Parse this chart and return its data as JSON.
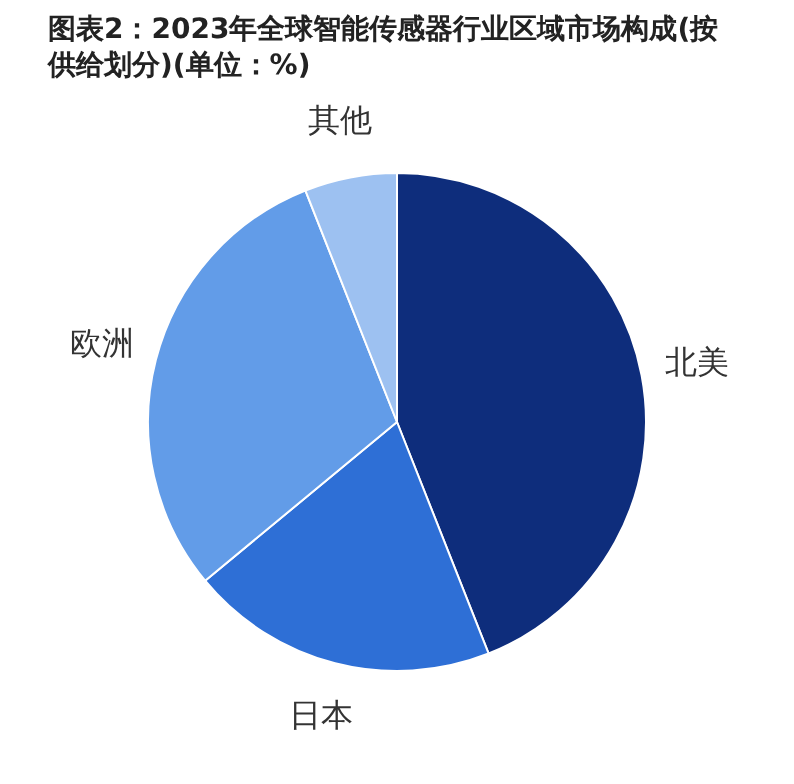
{
  "chart_data": {
    "type": "pie",
    "title": "图表2：2023年全球智能传感器行业区域市场构成(按供给划分)(单位：%)",
    "categories": [
      "北美",
      "日本",
      "欧洲",
      "其他"
    ],
    "values": [
      44,
      20,
      30,
      6
    ],
    "colors": [
      "#0e2d7c",
      "#2e6fd6",
      "#629ce8",
      "#9dc1f1"
    ],
    "legend": false
  }
}
